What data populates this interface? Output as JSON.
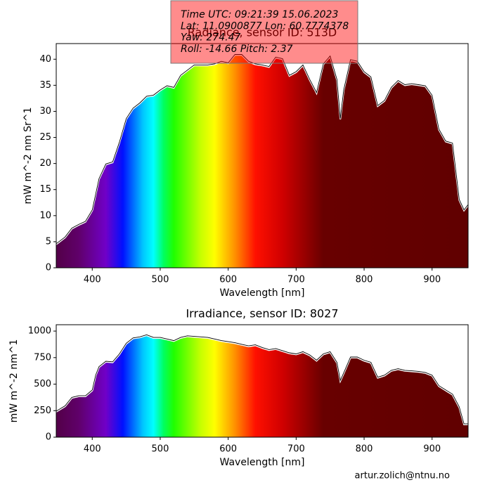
{
  "chart_data": [
    {
      "type": "area",
      "title": "Radiance, sensor ID: 513D",
      "xlabel": "Wavelength [nm]",
      "ylabel": "mW m^-2 nm Sr^1",
      "x": [
        347,
        360,
        370,
        380,
        390,
        400,
        405,
        410,
        420,
        430,
        440,
        450,
        460,
        470,
        480,
        490,
        500,
        510,
        520,
        530,
        540,
        550,
        570,
        580,
        590,
        600,
        610,
        620,
        630,
        640,
        650,
        660,
        670,
        680,
        690,
        700,
        710,
        720,
        730,
        740,
        750,
        760,
        765,
        770,
        780,
        790,
        800,
        810,
        820,
        830,
        840,
        850,
        860,
        870,
        880,
        890,
        900,
        910,
        920,
        930,
        940,
        947,
        953
      ],
      "values": [
        4.5,
        5.8,
        7.5,
        8.2,
        8.8,
        11,
        14,
        17,
        19.8,
        20.2,
        24,
        28.5,
        30.5,
        31.5,
        32.8,
        33,
        34,
        34.8,
        34.5,
        36.8,
        37.8,
        38.8,
        38.8,
        39,
        39.5,
        39.2,
        40.8,
        40.8,
        39.5,
        39,
        38.8,
        38.5,
        40.3,
        40,
        36.8,
        37.5,
        38.8,
        36,
        33.5,
        39,
        40.5,
        36,
        28.5,
        34,
        39.8,
        39.5,
        37.5,
        36.5,
        31,
        32,
        34.5,
        35.8,
        35,
        35.2,
        35,
        34.8,
        33,
        26.5,
        24.2,
        23.8,
        13,
        11,
        12
      ],
      "color": "#000000",
      "xlim": [
        347,
        953
      ],
      "xticks": [
        400,
        500,
        600,
        700,
        800,
        900
      ],
      "ylim": [
        0,
        43
      ],
      "yticks": [
        0,
        5,
        10,
        15,
        20,
        25,
        30,
        35,
        40
      ]
    },
    {
      "type": "area",
      "title": "Irradiance, sensor ID: 8027",
      "xlabel": "Wavelength [nm]",
      "ylabel": "mW m^-2 nm^1",
      "x": [
        347,
        360,
        370,
        380,
        390,
        400,
        405,
        410,
        420,
        430,
        440,
        450,
        460,
        470,
        480,
        490,
        500,
        510,
        520,
        530,
        540,
        550,
        560,
        570,
        580,
        590,
        600,
        610,
        620,
        630,
        640,
        650,
        660,
        670,
        680,
        690,
        700,
        710,
        720,
        730,
        740,
        750,
        760,
        765,
        770,
        780,
        790,
        800,
        810,
        820,
        830,
        840,
        850,
        860,
        870,
        880,
        890,
        900,
        910,
        920,
        930,
        940,
        947,
        953
      ],
      "values": [
        240,
        290,
        370,
        385,
        385,
        440,
        580,
        660,
        710,
        705,
        780,
        880,
        930,
        940,
        960,
        935,
        935,
        920,
        905,
        935,
        950,
        945,
        940,
        935,
        920,
        905,
        895,
        885,
        870,
        855,
        865,
        840,
        820,
        830,
        810,
        790,
        780,
        800,
        770,
        720,
        780,
        800,
        700,
        530,
        600,
        750,
        750,
        720,
        700,
        560,
        580,
        625,
        640,
        625,
        620,
        615,
        605,
        580,
        480,
        440,
        400,
        280,
        120,
        120
      ],
      "color": "#000000",
      "xlim": [
        347,
        953
      ],
      "xticks": [
        400,
        500,
        600,
        700,
        800,
        900
      ],
      "ylim": [
        0,
        1060
      ],
      "yticks": [
        0,
        250,
        500,
        750,
        1000
      ]
    }
  ],
  "annotation": [
    "Time UTC: 09:21:39 15.06.2023",
    "Lat: 11.0900877 Lon: 60.7774378",
    "Yaw: 274.47",
    "Roll: -14.66 Pitch: 2.37"
  ],
  "footer": "artur.zolich@ntnu.no"
}
